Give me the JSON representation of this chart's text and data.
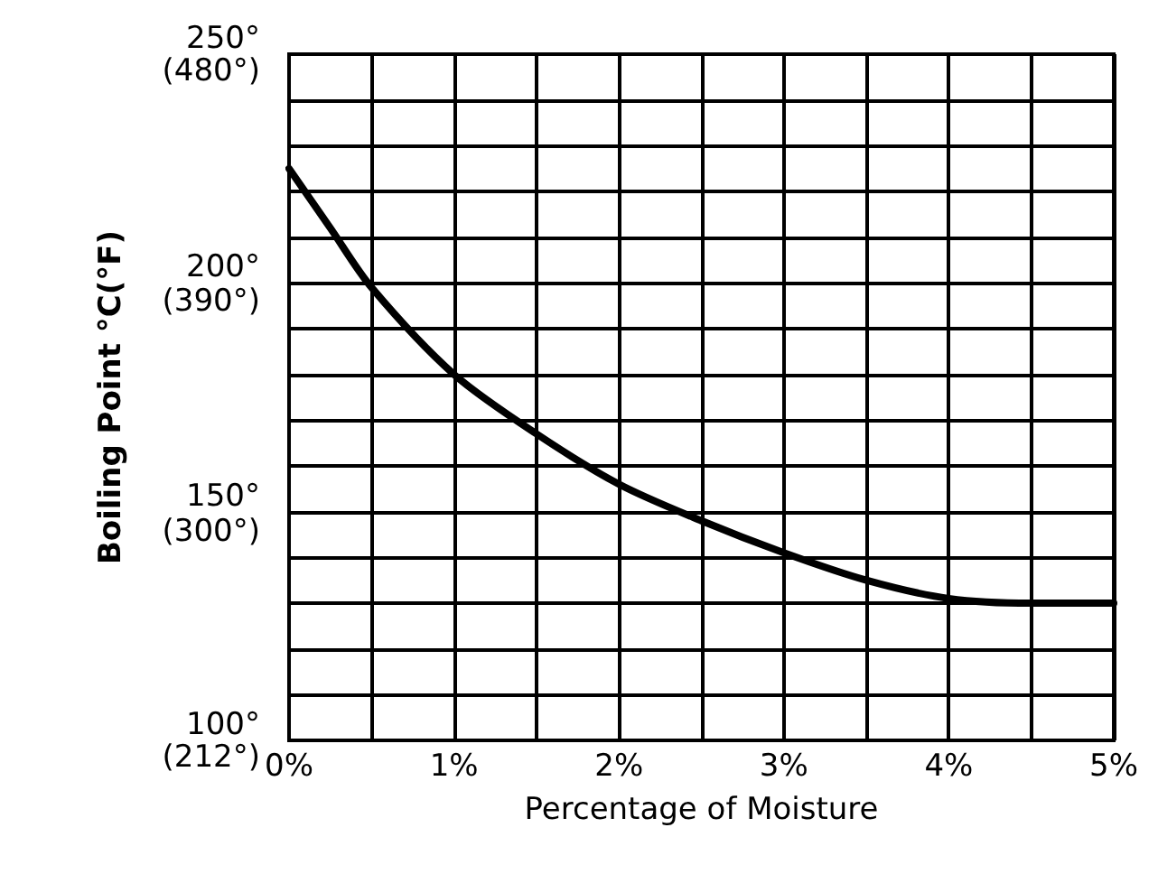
{
  "chart_data": {
    "type": "line",
    "xlabel": "Percentage of Moisture",
    "y2label": "Boiling Point °C(°F)",
    "x": [
      0,
      0.25,
      0.5,
      1,
      1.5,
      2,
      2.5,
      3,
      3.5,
      4,
      4.5,
      5
    ],
    "series": [
      {
        "color": "#000000",
        "values": [
          225,
          212,
          199,
          180,
          167,
          156,
          148,
          141,
          135,
          131,
          130,
          130
        ]
      }
    ],
    "xlim": [
      0,
      5
    ],
    "ylim": [
      100,
      250
    ],
    "y2lim": [
      212,
      480
    ],
    "xticks": [
      {
        "value": 0,
        "label": "0%"
      },
      {
        "value": 0.5,
        "label": null
      },
      {
        "value": 1,
        "label": "1%"
      },
      {
        "value": 1.5,
        "label": null
      },
      {
        "value": 2,
        "label": "2%"
      },
      {
        "value": 2.5,
        "label": null
      },
      {
        "value": 3,
        "label": "3%"
      },
      {
        "value": 3.5,
        "label": null
      },
      {
        "value": 4,
        "label": "4%"
      },
      {
        "value": 4.5,
        "label": null
      },
      {
        "value": 5,
        "label": "5%"
      }
    ],
    "yticks": [
      {
        "value": 100,
        "label": "100°"
      },
      {
        "value": 110,
        "label": null
      },
      {
        "value": 120,
        "label": null
      },
      {
        "value": 130,
        "label": null
      },
      {
        "value": 140,
        "label": null
      },
      {
        "value": 150,
        "label": "150°"
      },
      {
        "value": 160,
        "label": null
      },
      {
        "value": 170,
        "label": null
      },
      {
        "value": 180,
        "label": null
      },
      {
        "value": 190,
        "label": null
      },
      {
        "value": 200,
        "label": "200°"
      },
      {
        "value": 210,
        "label": null
      },
      {
        "value": 220,
        "label": null
      },
      {
        "value": 230,
        "label": null
      },
      {
        "value": 240,
        "label": null
      },
      {
        "value": 250,
        "label": "250°"
      }
    ],
    "y2ticks": [
      {
        "value": 212,
        "label": "(212°)"
      },
      {
        "value": 300,
        "label": "(300°)"
      },
      {
        "value": 390,
        "label": "(390°)"
      },
      {
        "value": 480,
        "label": "(480°)"
      }
    ],
    "grid": true,
    "marker": "none",
    "line_style": "solid"
  }
}
